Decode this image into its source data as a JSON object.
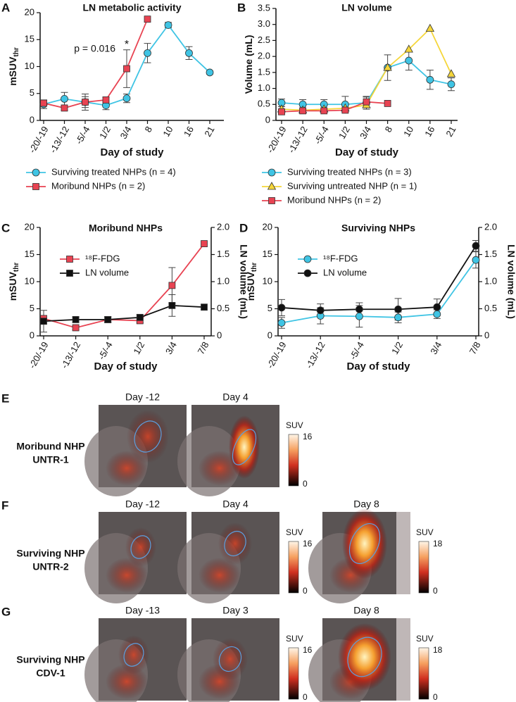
{
  "chart_data": [
    {
      "type": "line",
      "panel": "A",
      "title": "LN metabolic activity",
      "xlabel": "Day of study",
      "ylabel": "mSUV",
      "ylabel_sub": "thr",
      "categories": [
        "-20/-19",
        "-13/-12",
        "-5/-4",
        "1/2",
        "3/4",
        "8",
        "10",
        "16",
        "21"
      ],
      "ylim": [
        0,
        20
      ],
      "yticks": [
        0,
        5,
        10,
        15,
        20
      ],
      "legend": "below",
      "annotations": [
        "p = 0.016",
        "*"
      ],
      "series": [
        {
          "name": "Surviving treated NHPs (n = 4)",
          "color": "#3fc4e4",
          "marker": "circle",
          "values": [
            3.0,
            4.0,
            3.4,
            2.8,
            4.1,
            12.5,
            17.7,
            12.5,
            8.9
          ],
          "errors": [
            0.8,
            1.2,
            1.5,
            0.8,
            0.8,
            1.8,
            0.5,
            1.2,
            0.3
          ]
        },
        {
          "name": "Moribund NHPs (n = 2)",
          "color": "#e84352",
          "marker": "square",
          "values": [
            3.2,
            2.3,
            3.4,
            3.8,
            9.6,
            18.8,
            null,
            null,
            null
          ],
          "errors": [
            0.5,
            0.4,
            1.0,
            0.5,
            3.5,
            null,
            null,
            null,
            null
          ]
        }
      ]
    },
    {
      "type": "line",
      "panel": "B",
      "title": "LN volume",
      "xlabel": "Day of study",
      "ylabel": "Volume (mL)",
      "categories": [
        "-20/-19",
        "-13/-12",
        "-5/-4",
        "1/2",
        "3/4",
        "8",
        "10",
        "16",
        "21"
      ],
      "ylim": [
        0,
        3.5
      ],
      "yticks": [
        0,
        0.5,
        {
          "value": 1,
          "label": "1.0"
        },
        1.5,
        {
          "value": 2,
          "label": "2.0"
        },
        2.5,
        {
          "value": 3,
          "label": "3.0"
        },
        3.5
      ],
      "legend": "below",
      "series": [
        {
          "name": "Surviving treated NHPs (n = 3)",
          "color": "#3fc4e4",
          "marker": "circle",
          "values": [
            0.55,
            0.5,
            0.5,
            0.5,
            0.55,
            1.65,
            1.87,
            1.27,
            1.13
          ],
          "errors": [
            0.12,
            0.15,
            0.15,
            0.25,
            0.2,
            0.4,
            0.3,
            0.3,
            0.2
          ]
        },
        {
          "name": "Surviving untreated NHP (n = 1)",
          "color": "#f5d63a",
          "marker": "triangle",
          "values": [
            0.35,
            0.32,
            0.35,
            0.38,
            0.48,
            1.65,
            2.22,
            2.87,
            1.45
          ]
        },
        {
          "name": "Moribund NHPs (n = 2)",
          "color": "#e84352",
          "marker": "square",
          "values": [
            0.27,
            0.3,
            0.3,
            0.32,
            0.58,
            0.53,
            null,
            null,
            null
          ],
          "errors": [
            0.05,
            0.05,
            0.05,
            0.05,
            0.15,
            null,
            null,
            null,
            null
          ]
        }
      ]
    },
    {
      "type": "line",
      "panel": "C",
      "title": "Moribund NHPs",
      "xlabel": "Day of study",
      "ylabel": "mSUV",
      "ylabel_sub": "thr",
      "y2label": "LN volume (mL)",
      "categories": [
        "-20/-19",
        "-13/-12",
        "-5/-4",
        "1/2",
        "3/4",
        "7/8"
      ],
      "ylim": [
        0,
        20
      ],
      "yticks": [
        0,
        5,
        10,
        15,
        20
      ],
      "y2lim": [
        0,
        2
      ],
      "y2ticks": [
        0,
        0.5,
        {
          "value": 1,
          "label": "1.0"
        },
        1.5,
        {
          "value": 2,
          "label": "2.0"
        }
      ],
      "legend": "upper left",
      "series": [
        {
          "name": "¹⁸F-FDG",
          "color": "#e84352",
          "marker": "square",
          "values": [
            3.2,
            1.5,
            3.0,
            2.8,
            9.3,
            17.0
          ],
          "errors": [
            0.5,
            0.4,
            0.5,
            0.4,
            3.3,
            null
          ]
        },
        {
          "name": "LN volume",
          "color": "#111111",
          "marker": "square",
          "axis": "y2",
          "values": [
            0.27,
            0.3,
            0.3,
            0.34,
            0.56,
            0.53
          ],
          "errors": [
            0.2,
            0.05,
            0.05,
            0.05,
            0.2,
            null
          ]
        }
      ]
    },
    {
      "type": "line",
      "panel": "D",
      "title": "Surviving NHPs",
      "xlabel": "Day of study",
      "ylabel": "mSUV",
      "ylabel_sub": "thr",
      "y2label": "LN volume (mL)",
      "categories": [
        "-20/-19",
        "-13/-12",
        "-5/-4",
        "1/2",
        "3/4",
        "7/8"
      ],
      "ylim": [
        0,
        20
      ],
      "yticks": [
        0,
        5,
        10,
        15,
        20
      ],
      "y2lim": [
        0,
        2
      ],
      "y2ticks": [
        0,
        0.5,
        {
          "value": 1,
          "label": "1.0"
        },
        1.5,
        {
          "value": 2,
          "label": "2.0"
        }
      ],
      "legend": "upper left",
      "series": [
        {
          "name": "¹⁸F-FDG",
          "color": "#3fc4e4",
          "marker": "circle",
          "values": [
            2.4,
            3.7,
            3.6,
            3.4,
            4.0,
            14.0
          ],
          "errors": [
            1.0,
            1.5,
            2.0,
            1.0,
            0.8,
            1.5
          ]
        },
        {
          "name": "LN volume",
          "color": "#111111",
          "marker": "circle",
          "axis": "y2",
          "values": [
            0.52,
            0.47,
            0.49,
            0.49,
            0.53,
            1.66
          ],
          "errors": [
            0.15,
            0.12,
            0.12,
            0.2,
            0.15,
            0.1
          ]
        }
      ]
    }
  ],
  "image_panels": [
    {
      "letter": "E",
      "subject": "Moribund NHP",
      "id": "UNTR-1",
      "days": [
        "Day -12",
        "Day 4"
      ],
      "colorbars": [
        {
          "label": "SUV",
          "max": 16,
          "min": 0
        }
      ]
    },
    {
      "letter": "F",
      "subject": "Surviving NHP",
      "id": "UNTR-2",
      "days": [
        "Day -12",
        "Day 4",
        "Day 8"
      ],
      "colorbars": [
        {
          "label": "SUV",
          "max": 16,
          "min": 0
        },
        {
          "label": "SUV",
          "max": 18,
          "min": 0
        }
      ]
    },
    {
      "letter": "G",
      "subject": "Surviving NHP",
      "id": "CDV-1",
      "days": [
        "Day -13",
        "Day 3",
        "Day 8"
      ],
      "colorbars": [
        {
          "label": "SUV",
          "max": 16,
          "min": 0
        },
        {
          "label": "SUV",
          "max": 18,
          "min": 0
        }
      ]
    }
  ]
}
